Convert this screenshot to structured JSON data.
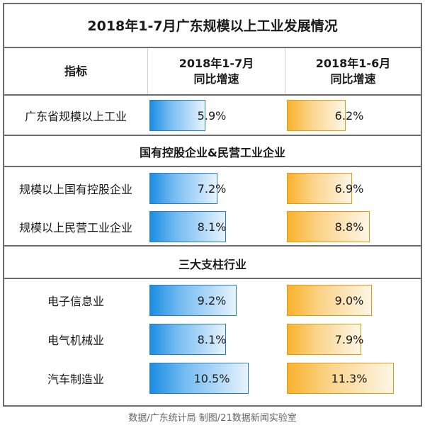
{
  "title": "2018年1-7月广东规模以上工业发展情况",
  "source": "数据/广东统计局  制图/21数据新闻实验室",
  "colors": {
    "series_1": "#1a8de3",
    "series_2": "#f9b22c"
  },
  "chart_data": {
    "type": "table",
    "title": "2018年1-7月广东规模以上工业发展情况",
    "columns": [
      "指标",
      "2018年1-7月\n同比增速",
      "2018年1-6月\n同比增速"
    ],
    "series": [
      {
        "name": "2018年1-7月同比增速"
      },
      {
        "name": "2018年1-6月同比增速"
      }
    ],
    "sections": [
      {
        "name": "",
        "rows": [
          {
            "label": "广东省规模以上工业",
            "values": [
              5.9,
              6.2
            ],
            "display": [
              "5.9%",
              "6.2%"
            ]
          }
        ]
      },
      {
        "name": "国有控股企业&民营工业企业",
        "rows": [
          {
            "label": "规模以上国有控股企业",
            "values": [
              7.2,
              6.9
            ],
            "display": [
              "7.2%",
              "6.9%"
            ]
          },
          {
            "label": "规模以上民营工业企业",
            "values": [
              8.1,
              8.8
            ],
            "display": [
              "8.1%",
              "8.8%"
            ]
          }
        ]
      },
      {
        "name": "三大支柱行业",
        "rows": [
          {
            "label": "电子信息业",
            "values": [
              9.2,
              9.0
            ],
            "display": [
              "9.2%",
              "9.0%"
            ]
          },
          {
            "label": "电气机械业",
            "values": [
              8.1,
              7.9
            ],
            "display": [
              "8.1%",
              "7.9%"
            ]
          },
          {
            "label": "汽车制造业",
            "values": [
              10.5,
              11.3
            ],
            "display": [
              "10.5%",
              "11.3%"
            ]
          }
        ]
      }
    ],
    "value_unit": "%",
    "bar_scale_max": 13.2
  }
}
